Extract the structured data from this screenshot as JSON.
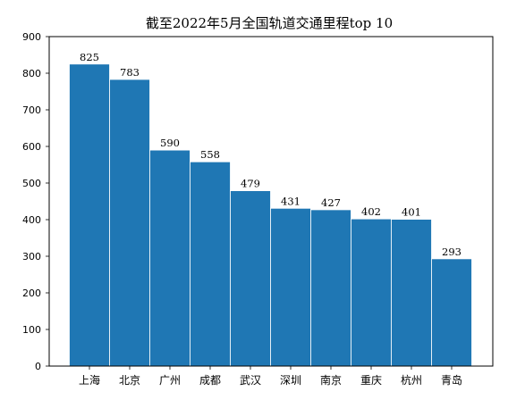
{
  "chart_data": {
    "type": "bar",
    "title": "截至2022年5月全国轨道交通里程top 10",
    "categories": [
      "上海",
      "北京",
      "广州",
      "成都",
      "武汉",
      "深圳",
      "南京",
      "重庆",
      "杭州",
      "青岛"
    ],
    "values": [
      825,
      783,
      590,
      558,
      479,
      431,
      427,
      402,
      401,
      293
    ],
    "data_labels": [
      "825",
      "783",
      "590",
      "558",
      "479",
      "431",
      "427",
      "402",
      "401",
      "293"
    ],
    "y_ticks": [
      "0",
      "100",
      "200",
      "300",
      "400",
      "500",
      "600",
      "700",
      "800",
      "900"
    ],
    "ylim": [
      0,
      900
    ],
    "xlabel": "",
    "ylabel": "",
    "grid": false,
    "bar_color": "#1f77b4"
  }
}
